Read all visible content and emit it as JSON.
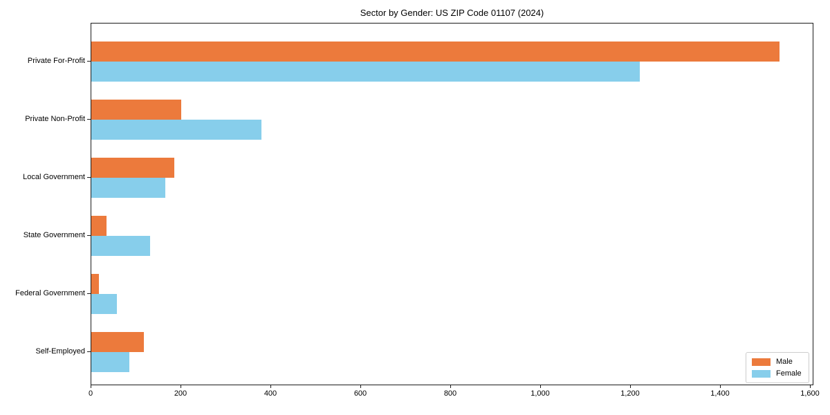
{
  "chart_data": {
    "type": "bar",
    "orientation": "horizontal",
    "title": "Sector by Gender: US ZIP Code 01107 (2024)",
    "categories": [
      "Private For-Profit",
      "Private Non-Profit",
      "Local Government",
      "State Government",
      "Federal Government",
      "Self-Employed"
    ],
    "series": [
      {
        "name": "Male",
        "color": "#EC7A3C",
        "values": [
          1530,
          200,
          184,
          34,
          17,
          117
        ]
      },
      {
        "name": "Female",
        "color": "#87CEEB",
        "values": [
          1220,
          378,
          164,
          130,
          57,
          84
        ]
      }
    ],
    "xlabel": "",
    "ylabel": "",
    "xlim": [
      0,
      1607
    ],
    "x_ticks": [
      0,
      200,
      400,
      600,
      800,
      1000,
      1200,
      1400,
      1600
    ],
    "x_tick_labels": [
      "0",
      "200",
      "400",
      "600",
      "800",
      "1,000",
      "1,200",
      "1,400",
      "1,600"
    ],
    "grid": false,
    "legend_position": "lower right",
    "axis_color": "#1a1a1a",
    "background_color": "#ffffff"
  }
}
